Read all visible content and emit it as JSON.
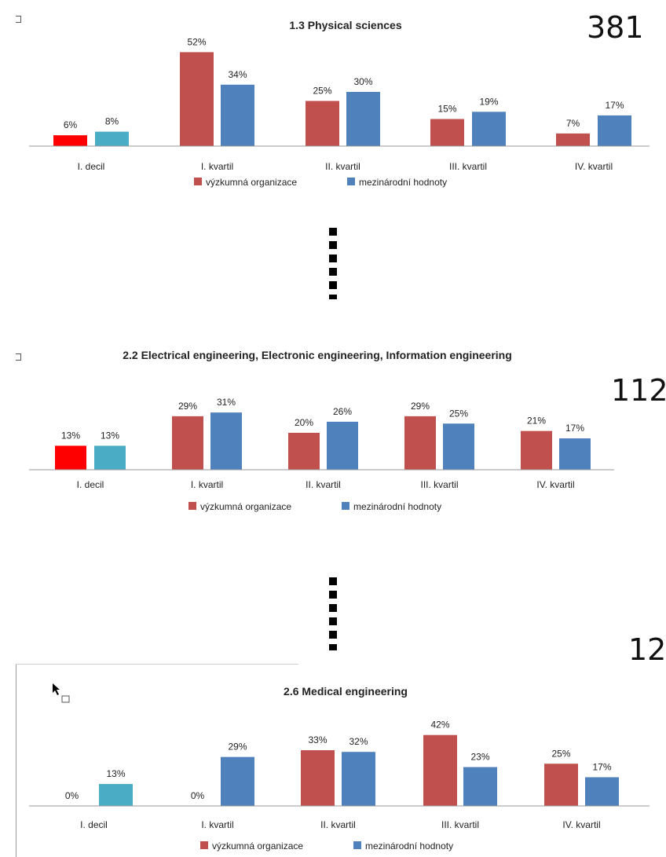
{
  "colors": {
    "org": "#c0504d",
    "intl": "#4f81bd",
    "org_first": "#ff0000",
    "intl_first": "#4bacc6",
    "axis": "#9a9a9a",
    "text": "#222222"
  },
  "side_numbers": [
    "381",
    "112",
    "12"
  ],
  "chart_data": [
    {
      "type": "bar",
      "title": "1.3 Physical sciences",
      "categories": [
        "I. decil",
        "I. kvartil",
        "II. kvartil",
        "III. kvartil",
        "IV. kvartil"
      ],
      "series": [
        {
          "name": "výzkumná organizace",
          "values": [
            6,
            52,
            25,
            15,
            7
          ]
        },
        {
          "name": "mezinárodní hodnoty",
          "values": [
            8,
            34,
            30,
            19,
            17
          ]
        }
      ],
      "data_labels": [
        [
          "6%",
          "52%",
          "25%",
          "15%",
          "7%"
        ],
        [
          "8%",
          "34%",
          "30%",
          "19%",
          "17%"
        ]
      ],
      "legend": "bottom",
      "grid": false
    },
    {
      "type": "bar",
      "title": "2.2 Electrical engineering, Electronic engineering, Information engineering",
      "categories": [
        "I. decil",
        "I. kvartil",
        "II. kvartil",
        "III. kvartil",
        "IV. kvartil"
      ],
      "series": [
        {
          "name": "výzkumná organizace",
          "values": [
            13,
            29,
            20,
            29,
            21
          ]
        },
        {
          "name": "mezinárodní hodnoty",
          "values": [
            13,
            31,
            26,
            25,
            17
          ]
        }
      ],
      "data_labels": [
        [
          "13%",
          "29%",
          "20%",
          "29%",
          "21%"
        ],
        [
          "13%",
          "31%",
          "26%",
          "25%",
          "17%"
        ]
      ],
      "legend": "bottom",
      "grid": false
    },
    {
      "type": "bar",
      "title": "2.6 Medical engineering",
      "categories": [
        "I. decil",
        "I. kvartil",
        "II. kvartil",
        "III. kvartil",
        "IV. kvartil"
      ],
      "series": [
        {
          "name": "výzkumná organizace",
          "values": [
            0,
            0,
            33,
            42,
            25
          ]
        },
        {
          "name": "mezinárodní hodnoty",
          "values": [
            13,
            29,
            32,
            23,
            17
          ]
        }
      ],
      "data_labels": [
        [
          "0%",
          "0%",
          "33%",
          "42%",
          "25%"
        ],
        [
          "13%",
          "29%",
          "32%",
          "23%",
          "17%"
        ]
      ],
      "legend": "bottom",
      "grid": false
    }
  ]
}
